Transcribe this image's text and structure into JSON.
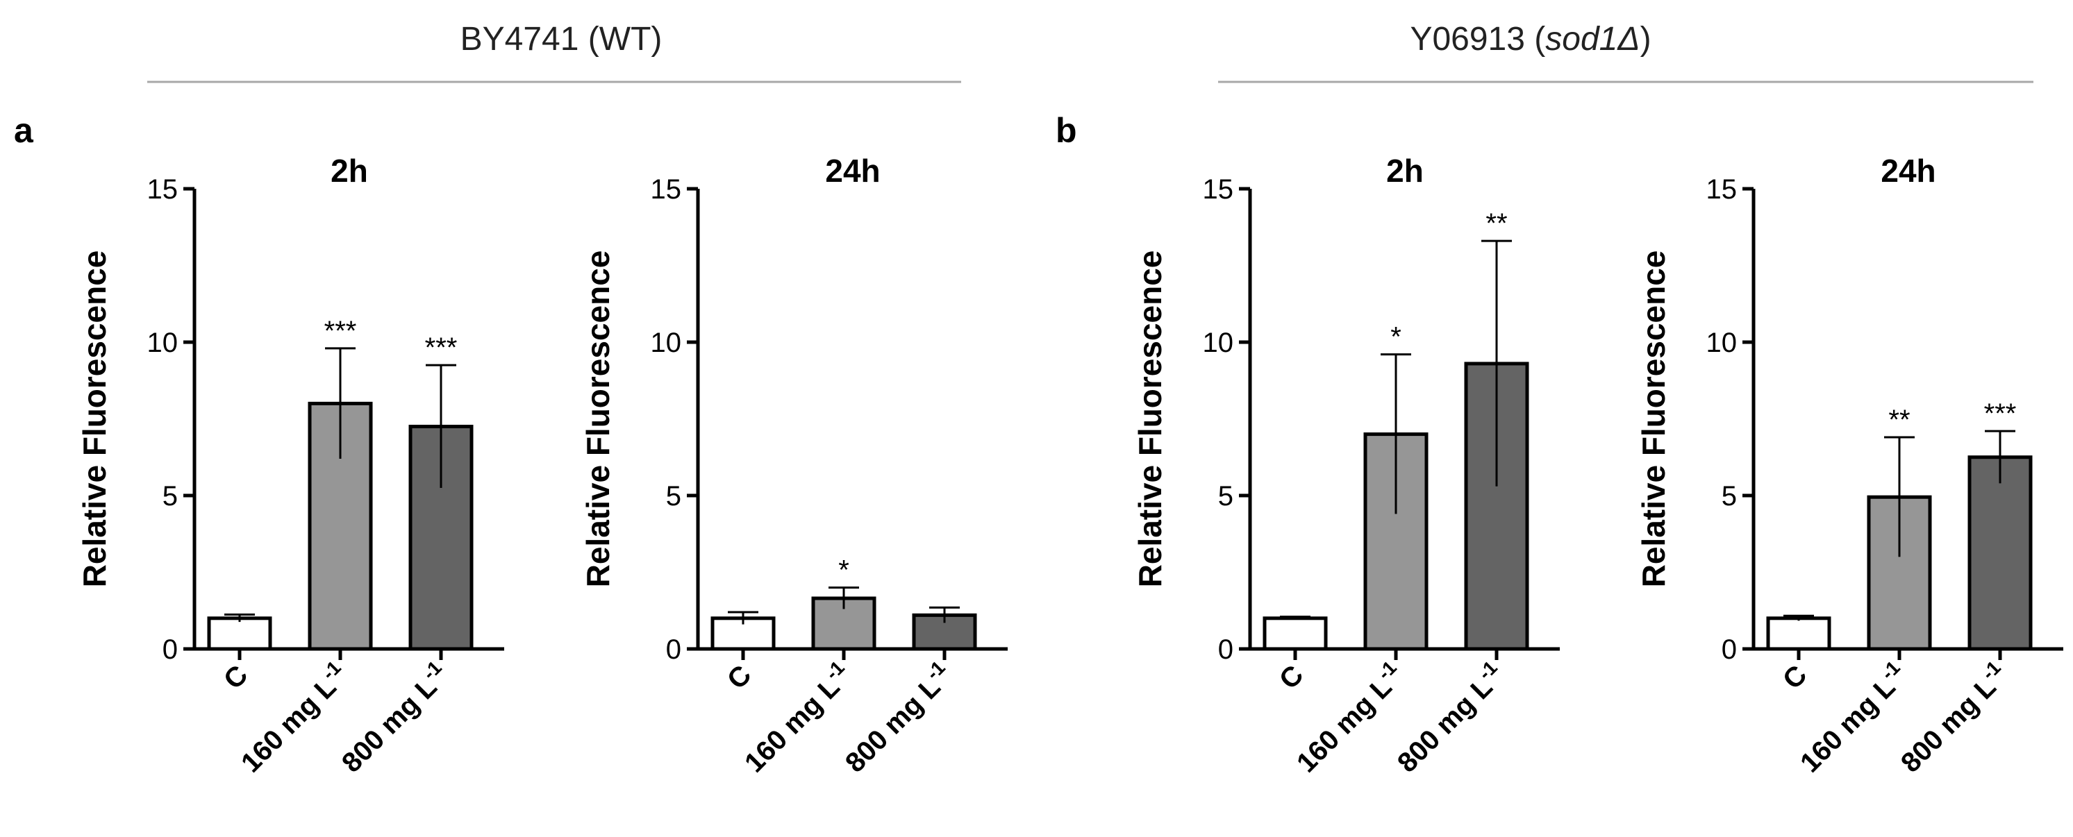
{
  "groups": [
    {
      "name": "BY4741 (WT)",
      "name_main": "BY4741 (WT)",
      "name_italic": "",
      "name_end": ""
    },
    {
      "name": "Y06913 (sod1Δ)",
      "name_main": "Y06913 (",
      "name_italic": "sod1Δ",
      "name_end": ")"
    }
  ],
  "panel_labels": [
    "a",
    "b"
  ],
  "chart_data": [
    {
      "type": "bar",
      "group": "BY4741 (WT)",
      "panel": "a",
      "title": "2h",
      "ylabel": "Relative Fluorescence",
      "ylim": [
        0,
        15
      ],
      "yticks": [
        0,
        5,
        10,
        15
      ],
      "categories": [
        "C",
        "160 mg L-1",
        "800 mg L-1"
      ],
      "values": [
        1.0,
        8.0,
        7.25
      ],
      "errors": [
        0.12,
        1.8,
        2.0
      ],
      "significance": [
        "",
        "***",
        "***"
      ],
      "colors": [
        "#ffffff",
        "#969696",
        "#646464"
      ]
    },
    {
      "type": "bar",
      "group": "BY4741 (WT)",
      "panel": "a",
      "title": "24h",
      "ylabel": "Relative Fluorescence",
      "ylim": [
        0,
        15
      ],
      "yticks": [
        0,
        5,
        10,
        15
      ],
      "categories": [
        "C",
        "160 mg L-1",
        "800 mg L-1"
      ],
      "values": [
        1.0,
        1.65,
        1.1
      ],
      "errors": [
        0.2,
        0.35,
        0.25
      ],
      "significance": [
        "",
        "*",
        ""
      ],
      "colors": [
        "#ffffff",
        "#969696",
        "#646464"
      ]
    },
    {
      "type": "bar",
      "group": "Y06913 (sod1Δ)",
      "panel": "b",
      "title": "2h",
      "ylabel": "Relative Fluorescence",
      "ylim": [
        0,
        15
      ],
      "yticks": [
        0,
        5,
        10,
        15
      ],
      "categories": [
        "C",
        "160 mg L-1",
        "800 mg L-1"
      ],
      "values": [
        1.0,
        7.0,
        9.3
      ],
      "errors": [
        0.05,
        2.6,
        4.0
      ],
      "significance": [
        "",
        "*",
        "**"
      ],
      "colors": [
        "#ffffff",
        "#969696",
        "#646464"
      ]
    },
    {
      "type": "bar",
      "group": "Y06913 (sod1Δ)",
      "panel": "b",
      "title": "24h",
      "ylabel": "Relative Fluorescence",
      "ylim": [
        0,
        15
      ],
      "yticks": [
        0,
        5,
        10,
        15
      ],
      "categories": [
        "C",
        "160 mg L-1",
        "800 mg L-1"
      ],
      "values": [
        1.0,
        4.95,
        6.25
      ],
      "errors": [
        0.08,
        1.95,
        0.85
      ],
      "significance": [
        "",
        "**",
        "***"
      ],
      "colors": [
        "#ffffff",
        "#969696",
        "#646464"
      ]
    }
  ]
}
